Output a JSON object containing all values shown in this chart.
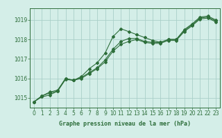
{
  "title": "Graphe pression niveau de la mer (hPa)",
  "background_color": "#d4eee8",
  "grid_color": "#aacfc8",
  "line_color": "#2d6e3a",
  "xlim": [
    -0.5,
    23.5
  ],
  "ylim": [
    1014.5,
    1019.6
  ],
  "yticks": [
    1015,
    1016,
    1017,
    1018,
    1019
  ],
  "xticks": [
    0,
    1,
    2,
    3,
    4,
    5,
    6,
    7,
    8,
    9,
    10,
    11,
    12,
    13,
    14,
    15,
    16,
    17,
    18,
    19,
    20,
    21,
    22,
    23
  ],
  "series": [
    [
      1014.8,
      1015.1,
      1015.3,
      1015.4,
      1016.0,
      1015.9,
      1016.1,
      1016.5,
      1016.8,
      1017.3,
      1018.15,
      1018.55,
      1018.4,
      1018.25,
      1018.1,
      1017.95,
      1017.85,
      1018.0,
      1018.0,
      1018.5,
      1018.8,
      1019.15,
      1019.2,
      1019.0
    ],
    [
      1014.8,
      1015.1,
      1015.25,
      1015.35,
      1016.0,
      1015.9,
      1016.05,
      1016.3,
      1016.55,
      1016.95,
      1017.5,
      1017.9,
      1018.05,
      1018.05,
      1017.9,
      1017.85,
      1017.85,
      1018.0,
      1018.0,
      1018.45,
      1018.75,
      1019.1,
      1019.15,
      1018.95
    ],
    [
      1014.8,
      1015.05,
      1015.15,
      1015.35,
      1015.95,
      1015.9,
      1016.0,
      1016.25,
      1016.5,
      1016.85,
      1017.4,
      1017.75,
      1017.9,
      1018.0,
      1017.85,
      1017.8,
      1017.8,
      1017.95,
      1017.95,
      1018.4,
      1018.7,
      1019.05,
      1019.1,
      1018.9
    ]
  ]
}
